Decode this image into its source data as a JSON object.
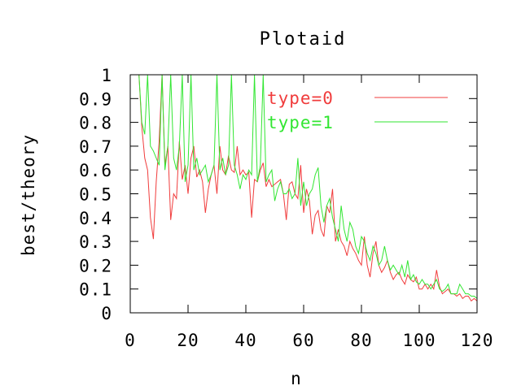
{
  "chart_data": {
    "type": "line",
    "title": "Plotaid",
    "xlabel": "n",
    "ylabel": "best/theory",
    "xlim": [
      0,
      120
    ],
    "ylim": [
      0,
      1
    ],
    "x_ticks": [
      "0",
      "20",
      "40",
      "60",
      "80",
      "100",
      "120"
    ],
    "y_ticks": [
      "0",
      "0.1",
      "0.2",
      "0.3",
      "0.4",
      "0.5",
      "0.6",
      "0.7",
      "0.8",
      "0.9",
      "1"
    ],
    "grid": false,
    "legend_position": "top-right",
    "series": [
      {
        "name": "type=0",
        "color": "#f03c3c",
        "x": [
          2,
          3,
          4,
          5,
          6,
          7,
          8,
          9,
          10,
          11,
          12,
          13,
          14,
          15,
          16,
          17,
          18,
          19,
          20,
          21,
          22,
          23,
          24,
          25,
          26,
          27,
          28,
          29,
          30,
          31,
          32,
          33,
          34,
          35,
          36,
          37,
          38,
          39,
          40,
          41,
          42,
          43,
          44,
          45,
          46,
          47,
          48,
          49,
          50,
          51,
          52,
          53,
          54,
          55,
          56,
          57,
          58,
          59,
          60,
          61,
          62,
          63,
          64,
          65,
          66,
          67,
          68,
          69,
          70,
          71,
          72,
          73,
          74,
          75,
          76,
          77,
          78,
          79,
          80,
          81,
          82,
          83,
          84,
          85,
          86,
          87,
          88,
          89,
          90,
          91,
          92,
          93,
          94,
          95,
          96,
          97,
          98,
          99,
          100,
          101,
          102,
          103,
          104,
          105,
          106,
          107,
          108,
          109,
          110,
          111,
          112,
          113,
          114,
          115,
          116,
          117,
          118,
          119,
          120
        ],
        "y": [
          1.0,
          1.0,
          0.78,
          0.65,
          0.6,
          0.4,
          0.31,
          0.55,
          0.72,
          1.0,
          0.62,
          0.7,
          0.39,
          0.5,
          0.48,
          0.72,
          0.56,
          0.62,
          0.5,
          0.65,
          0.7,
          0.57,
          0.6,
          0.55,
          0.42,
          0.52,
          0.58,
          0.62,
          0.5,
          0.7,
          0.6,
          0.58,
          0.66,
          0.6,
          0.59,
          0.7,
          0.58,
          0.6,
          0.58,
          0.59,
          0.4,
          0.56,
          0.55,
          0.6,
          0.63,
          0.53,
          0.56,
          0.53,
          0.54,
          0.55,
          0.56,
          0.5,
          0.39,
          0.54,
          0.55,
          0.5,
          0.48,
          0.62,
          0.42,
          0.52,
          0.47,
          0.33,
          0.41,
          0.43,
          0.35,
          0.32,
          0.45,
          0.42,
          0.52,
          0.3,
          0.35,
          0.3,
          0.28,
          0.24,
          0.3,
          0.27,
          0.25,
          0.22,
          0.2,
          0.32,
          0.2,
          0.15,
          0.25,
          0.3,
          0.2,
          0.17,
          0.19,
          0.22,
          0.17,
          0.14,
          0.16,
          0.17,
          0.14,
          0.12,
          0.16,
          0.14,
          0.13,
          0.15,
          0.1,
          0.1,
          0.12,
          0.1,
          0.12,
          0.1,
          0.18,
          0.11,
          0.08,
          0.09,
          0.1,
          0.08,
          0.08,
          0.07,
          0.08,
          0.06,
          0.07,
          0.07,
          0.05,
          0.06,
          0.05
        ]
      },
      {
        "name": "type=1",
        "color": "#32e632",
        "x": [
          2,
          3,
          4,
          5,
          6,
          7,
          8,
          9,
          10,
          11,
          12,
          13,
          14,
          15,
          16,
          17,
          18,
          19,
          20,
          21,
          22,
          23,
          24,
          25,
          26,
          27,
          28,
          29,
          30,
          31,
          32,
          33,
          34,
          35,
          36,
          37,
          38,
          39,
          40,
          41,
          42,
          43,
          44,
          45,
          46,
          47,
          48,
          49,
          50,
          51,
          52,
          53,
          54,
          55,
          56,
          57,
          58,
          59,
          60,
          61,
          62,
          63,
          64,
          65,
          66,
          67,
          68,
          69,
          70,
          71,
          72,
          73,
          74,
          75,
          76,
          77,
          78,
          79,
          80,
          81,
          82,
          83,
          84,
          85,
          86,
          87,
          88,
          89,
          90,
          91,
          92,
          93,
          94,
          95,
          96,
          97,
          98,
          99,
          100,
          101,
          102,
          103,
          104,
          105,
          106,
          107,
          108,
          109,
          110,
          111,
          112,
          113,
          114,
          115,
          116,
          117,
          118,
          119,
          120
        ],
        "y": [
          1.0,
          1.0,
          0.8,
          0.75,
          1.0,
          0.7,
          0.68,
          0.65,
          0.62,
          1.0,
          0.6,
          0.7,
          1.0,
          0.65,
          0.6,
          0.7,
          1.0,
          0.55,
          0.62,
          1.0,
          0.6,
          0.65,
          0.58,
          0.6,
          0.62,
          0.55,
          0.58,
          0.62,
          1.0,
          0.6,
          0.65,
          0.58,
          0.62,
          1.0,
          0.62,
          0.58,
          0.52,
          0.58,
          0.56,
          0.6,
          0.58,
          1.0,
          0.55,
          0.62,
          1.0,
          0.55,
          0.58,
          0.6,
          0.47,
          0.52,
          0.55,
          0.5,
          0.5,
          0.52,
          0.48,
          0.5,
          0.65,
          0.45,
          0.55,
          0.45,
          0.5,
          0.52,
          0.58,
          0.61,
          0.45,
          0.38,
          0.45,
          0.48,
          0.4,
          0.35,
          0.3,
          0.45,
          0.35,
          0.3,
          0.38,
          0.35,
          0.28,
          0.25,
          0.32,
          0.3,
          0.25,
          0.22,
          0.28,
          0.25,
          0.2,
          0.22,
          0.28,
          0.22,
          0.18,
          0.2,
          0.18,
          0.16,
          0.2,
          0.15,
          0.22,
          0.14,
          0.16,
          0.13,
          0.12,
          0.14,
          0.12,
          0.12,
          0.1,
          0.12,
          0.14,
          0.1,
          0.09,
          0.1,
          0.12,
          0.08,
          0.08,
          0.08,
          0.12,
          0.1,
          0.08,
          0.08,
          0.07,
          0.07,
          0.06
        ]
      }
    ]
  }
}
